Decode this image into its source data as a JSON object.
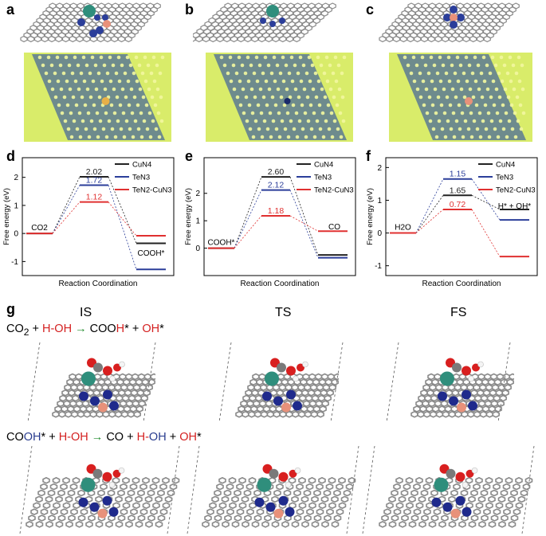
{
  "panels": {
    "a": "a",
    "b": "b",
    "c": "c",
    "d": "d",
    "e": "e",
    "f": "f",
    "g": "g"
  },
  "colors": {
    "CuN4": "#222222",
    "TeN3": "#2b3e9a",
    "TeN2_CuN3": "#e03030",
    "graphene": "#8a8a8a",
    "nitrogen": "#1f2a8c",
    "tellurium": "#2f8e7c",
    "copper": "#e8917a",
    "oxygen": "#d81f1f",
    "hydrogen": "#f4f4f4",
    "stm_bg": "#d9ec6a"
  },
  "chart_data": [
    {
      "type": "energy-profile",
      "panel": "d",
      "ylabel": "Free energy (eV)",
      "xlabel": "Reaction Coordination",
      "ylim": [
        -1.5,
        2.7
      ],
      "yticks": [
        "2",
        "1",
        "0",
        "-1"
      ],
      "states": [
        "CO2",
        "TS",
        "COOH*"
      ],
      "state_labels": {
        "initial": "CO2",
        "final": "COOH*"
      },
      "legend": [
        "CuN4",
        "TeN3",
        "TeN2-CuN3"
      ],
      "series": [
        {
          "name": "CuN4",
          "values": [
            0,
            2.02,
            -0.35
          ]
        },
        {
          "name": "TeN3",
          "values": [
            0,
            1.72,
            -1.28
          ]
        },
        {
          "name": "TeN2-CuN3",
          "values": [
            0,
            1.12,
            -0.08
          ]
        }
      ],
      "labels": [
        "2.02",
        "1.72",
        "1.12"
      ]
    },
    {
      "type": "energy-profile",
      "panel": "e",
      "ylabel": "Free energy (eV)",
      "xlabel": "Reaction Coordination",
      "ylim": [
        -1.0,
        3.3
      ],
      "yticks": [
        "2",
        "1",
        "0"
      ],
      "states": [
        "COOH*",
        "TS",
        "CO"
      ],
      "state_labels": {
        "initial": "COOH*",
        "final": "CO"
      },
      "legend": [
        "CuN4",
        "TeN3",
        "TeN2-CuN3"
      ],
      "series": [
        {
          "name": "CuN4",
          "values": [
            0,
            2.6,
            -0.25
          ]
        },
        {
          "name": "TeN3",
          "values": [
            0,
            2.12,
            -0.35
          ]
        },
        {
          "name": "TeN2-CuN3",
          "values": [
            0,
            1.18,
            0.62
          ]
        }
      ],
      "labels": [
        "2.60",
        "2.12",
        "1.18"
      ]
    },
    {
      "type": "energy-profile",
      "panel": "f",
      "ylabel": "Free energy (eV)",
      "xlabel": "Reaction Coordination",
      "ylim": [
        -1.3,
        2.3
      ],
      "yticks": [
        "2",
        "1",
        "0",
        "-1"
      ],
      "states": [
        "H2O",
        "TS",
        "H* + OH*"
      ],
      "state_labels": {
        "initial": "H2O",
        "final": "H* + OH*"
      },
      "legend": [
        "CuN4",
        "TeN3",
        "TeN2-CuN3"
      ],
      "series": [
        {
          "name": "CuN4",
          "values": [
            0,
            1.15,
            0.72
          ]
        },
        {
          "name": "TeN3",
          "values": [
            0,
            1.65,
            0.4
          ]
        },
        {
          "name": "TeN2-CuN3",
          "values": [
            0,
            0.72,
            -0.72
          ]
        }
      ],
      "labels": [
        "1.65",
        "1.15",
        "0.72"
      ]
    }
  ],
  "panel_g": {
    "stages": [
      "IS",
      "TS",
      "FS"
    ],
    "reaction1": {
      "r1": "CO",
      "r1_sub": "2",
      "plus1": "+",
      "r2": "H-OH",
      "arrow": "→",
      "p1a": "COO",
      "p1b": "H",
      "p1c": "*",
      "plus2": "+",
      "p2": "OH",
      "p2b": "*"
    },
    "reaction2": {
      "r1a": "CO",
      "r1b": "OH",
      "r1c": "*",
      "plus1": "+",
      "r2": "H-OH",
      "arrow": "→",
      "p1": "CO",
      "plus2": "+",
      "p2a": "H",
      "p2b": "-",
      "p2c": "OH",
      "plus3": "+",
      "p3": "OH",
      "p3b": "*"
    }
  }
}
